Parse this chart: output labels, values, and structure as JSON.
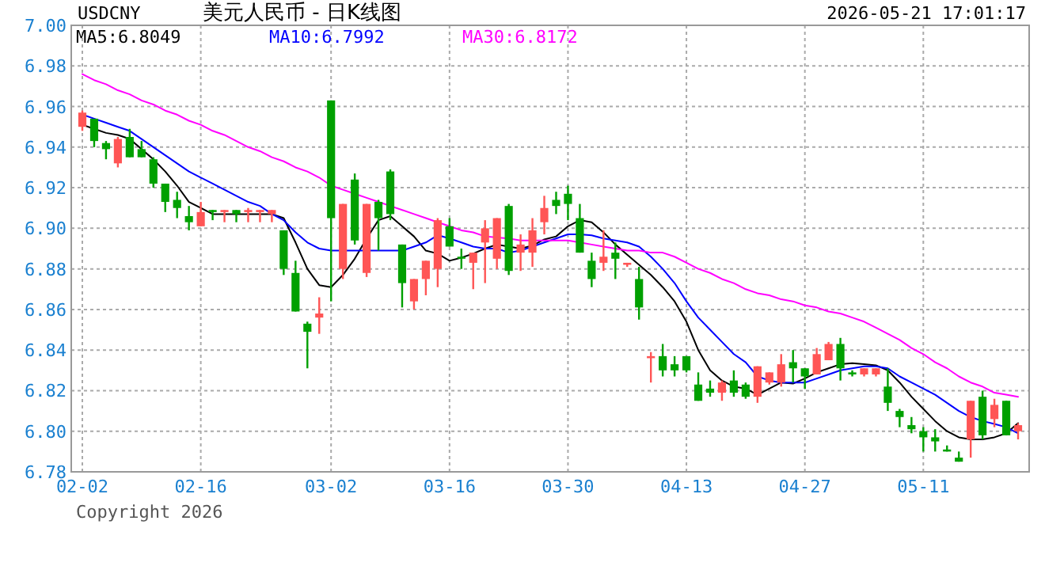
{
  "chart_data": {
    "type": "candlestick",
    "title": "美元人民币 - 日K线图",
    "annotations": [
      "USDCNY",
      "2026-05-21 17:01:17",
      "Copyright 2026"
    ],
    "categories": [
      "02-02",
      null,
      null,
      null,
      null,
      null,
      null,
      null,
      null,
      null,
      "02-16",
      null,
      null,
      null,
      null,
      null,
      null,
      null,
      null,
      null,
      null,
      "03-02",
      null,
      null,
      null,
      null,
      null,
      null,
      null,
      null,
      null,
      "03-16",
      null,
      null,
      null,
      null,
      null,
      null,
      null,
      null,
      null,
      "03-30",
      null,
      null,
      null,
      null,
      null,
      null,
      null,
      null,
      null,
      "04-13",
      null,
      null,
      null,
      null,
      null,
      null,
      null,
      null,
      null,
      "04-27",
      null,
      null,
      null,
      null,
      null,
      null,
      null,
      null,
      null,
      "05-11",
      null,
      null,
      null,
      null,
      null,
      null,
      null,
      null
    ],
    "ohlc": [
      [
        6.95,
        6.958,
        6.948,
        6.957
      ],
      [
        6.954,
        6.954,
        6.94,
        6.943
      ],
      [
        6.942,
        6.943,
        6.934,
        6.939
      ],
      [
        6.932,
        6.945,
        6.93,
        6.944
      ],
      [
        6.945,
        6.949,
        6.935,
        6.935
      ],
      [
        6.939,
        6.943,
        6.935,
        6.935
      ],
      [
        6.934,
        6.935,
        6.92,
        6.922
      ],
      [
        6.922,
        6.922,
        6.908,
        6.913
      ],
      [
        6.914,
        6.918,
        6.905,
        6.91
      ],
      [
        6.906,
        6.911,
        6.899,
        6.903
      ],
      [
        6.901,
        6.913,
        6.901,
        6.908
      ],
      [
        6.909,
        6.909,
        6.904,
        6.908
      ],
      [
        6.908,
        6.909,
        6.903,
        6.909
      ],
      [
        6.909,
        6.909,
        6.903,
        6.907
      ],
      [
        6.908,
        6.91,
        6.903,
        6.909
      ],
      [
        6.908,
        6.909,
        6.903,
        6.909
      ],
      [
        6.907,
        6.909,
        6.903,
        6.909
      ],
      [
        6.899,
        6.899,
        6.877,
        6.88
      ],
      [
        6.878,
        6.884,
        6.859,
        6.859
      ],
      [
        6.853,
        6.854,
        6.831,
        6.849
      ],
      [
        6.856,
        6.866,
        6.848,
        6.858
      ],
      [
        6.963,
        6.963,
        6.864,
        6.905
      ],
      [
        6.88,
        6.912,
        6.875,
        6.912
      ],
      [
        6.924,
        6.927,
        6.892,
        6.894
      ],
      [
        6.878,
        6.912,
        6.876,
        6.912
      ],
      [
        6.913,
        6.914,
        6.889,
        6.905
      ],
      [
        6.928,
        6.929,
        6.904,
        6.907
      ],
      [
        6.892,
        6.892,
        6.861,
        6.873
      ],
      [
        6.864,
        6.875,
        6.86,
        6.875
      ],
      [
        6.875,
        6.884,
        6.867,
        6.884
      ],
      [
        6.88,
        6.905,
        6.871,
        6.904
      ],
      [
        6.901,
        6.905,
        6.891,
        6.891
      ],
      [
        6.886,
        6.89,
        6.88,
        6.885
      ],
      [
        6.883,
        6.888,
        6.87,
        6.888
      ],
      [
        6.893,
        6.904,
        6.873,
        6.9
      ],
      [
        6.885,
        6.905,
        6.88,
        6.905
      ],
      [
        6.911,
        6.912,
        6.877,
        6.879
      ],
      [
        6.888,
        6.897,
        6.879,
        6.892
      ],
      [
        6.888,
        6.905,
        6.881,
        6.899
      ],
      [
        6.903,
        6.916,
        6.897,
        6.91
      ],
      [
        6.914,
        6.918,
        6.907,
        6.911
      ],
      [
        6.917,
        6.921,
        6.904,
        6.912
      ],
      [
        6.905,
        6.912,
        6.888,
        6.888
      ],
      [
        6.884,
        6.888,
        6.871,
        6.875
      ],
      [
        6.883,
        6.899,
        6.879,
        6.886
      ],
      [
        6.888,
        6.893,
        6.875,
        6.885
      ],
      [
        6.882,
        6.883,
        6.881,
        6.883
      ],
      [
        6.875,
        6.881,
        6.855,
        6.861
      ],
      [
        6.836,
        6.839,
        6.824,
        6.837
      ],
      [
        6.837,
        6.843,
        6.827,
        6.83
      ],
      [
        6.833,
        6.837,
        6.827,
        6.83
      ],
      [
        6.837,
        6.837,
        6.829,
        6.83
      ],
      [
        6.823,
        6.829,
        6.815,
        6.815
      ],
      [
        6.821,
        6.825,
        6.817,
        6.819
      ],
      [
        6.819,
        6.825,
        6.815,
        6.824
      ],
      [
        6.825,
        6.83,
        6.817,
        6.819
      ],
      [
        6.823,
        6.824,
        6.816,
        6.817
      ],
      [
        6.817,
        6.832,
        6.814,
        6.832
      ],
      [
        6.824,
        6.829,
        6.823,
        6.829
      ],
      [
        6.824,
        6.838,
        6.822,
        6.833
      ],
      [
        6.834,
        6.84,
        6.824,
        6.831
      ],
      [
        6.831,
        6.831,
        6.821,
        6.827
      ],
      [
        6.828,
        6.841,
        6.828,
        6.838
      ],
      [
        6.835,
        6.844,
        6.835,
        6.843
      ],
      [
        6.843,
        6.846,
        6.825,
        6.831
      ],
      [
        6.829,
        6.83,
        6.827,
        6.828
      ],
      [
        6.828,
        6.831,
        6.827,
        6.831
      ],
      [
        6.828,
        6.831,
        6.827,
        6.831
      ],
      [
        6.822,
        6.831,
        6.81,
        6.814
      ],
      [
        6.81,
        6.811,
        6.802,
        6.807
      ],
      [
        6.803,
        6.807,
        6.799,
        6.801
      ],
      [
        6.8,
        6.802,
        6.79,
        6.797
      ],
      [
        6.797,
        6.801,
        6.79,
        6.795
      ],
      [
        6.791,
        6.793,
        6.79,
        6.79
      ],
      [
        6.787,
        6.79,
        6.785,
        6.785
      ],
      [
        6.796,
        6.815,
        6.787,
        6.815
      ],
      [
        6.817,
        6.82,
        6.796,
        6.798
      ],
      [
        6.806,
        6.816,
        6.802,
        6.813
      ],
      [
        6.815,
        6.815,
        6.798,
        6.798
      ],
      [
        6.8,
        6.804,
        6.796,
        6.803
      ]
    ],
    "colors": [
      "#ff5555",
      "#00a000",
      "#00a000",
      "#ff5555",
      "#00a000",
      "#00a000",
      "#00a000",
      "#00a000",
      "#00a000",
      "#00a000",
      "#ff5555",
      "#00a000",
      "#ff5555",
      "#00a000",
      "#ff5555",
      "#ff5555",
      "#ff5555",
      "#00a000",
      "#00a000",
      "#00a000",
      "#ff5555",
      "#00a000",
      "#ff5555",
      "#00a000",
      "#ff5555",
      "#00a000",
      "#00a000",
      "#00a000",
      "#ff5555",
      "#ff5555",
      "#ff5555",
      "#00a000",
      "#00a000",
      "#ff5555",
      "#ff5555",
      "#ff5555",
      "#00a000",
      "#ff5555",
      "#ff5555",
      "#ff5555",
      "#00a000",
      "#00a000",
      "#00a000",
      "#00a000",
      "#ff5555",
      "#00a000",
      "#ff5555",
      "#00a000",
      "#ff5555",
      "#00a000",
      "#00a000",
      "#00a000",
      "#00a000",
      "#00a000",
      "#ff5555",
      "#00a000",
      "#00a000",
      "#ff5555",
      "#ff5555",
      "#ff5555",
      "#00a000",
      "#00a000",
      "#ff5555",
      "#ff5555",
      "#00a000",
      "#00a000",
      "#ff5555",
      "#ff5555",
      "#00a000",
      "#00a000",
      "#00a000",
      "#00a000",
      "#00a000",
      "#00a000",
      "#00a000",
      "#ff5555",
      "#00a000",
      "#ff5555",
      "#00a000",
      "#ff5555"
    ],
    "series": [
      {
        "type": "line",
        "name": "MA5:6.8049",
        "color": "#000000",
        "values": [
          6.951,
          6.949,
          6.947,
          6.946,
          6.944,
          6.939,
          6.934,
          6.928,
          6.921,
          6.913,
          6.91,
          6.907,
          6.907,
          6.907,
          6.907,
          6.907,
          6.907,
          6.905,
          6.893,
          6.88,
          6.872,
          6.871,
          6.877,
          6.885,
          6.895,
          6.904,
          6.906,
          6.901,
          6.896,
          6.889,
          6.8875,
          6.884,
          6.8855,
          6.8875,
          6.89,
          6.892,
          6.891,
          6.89,
          6.8915,
          6.8945,
          6.896,
          6.901,
          6.904,
          6.903,
          6.898,
          6.892,
          6.887,
          6.882,
          6.877,
          6.871,
          6.864,
          6.854,
          6.84,
          6.83,
          6.825,
          6.822,
          6.821,
          6.818,
          6.821,
          6.824,
          6.8235,
          6.826,
          6.829,
          6.831,
          6.833,
          6.8335,
          6.833,
          6.8325,
          6.83,
          6.824,
          6.817,
          6.811,
          6.805,
          6.8,
          6.797,
          6.796,
          6.796,
          6.797,
          6.799,
          6.804
        ]
      },
      {
        "type": "line",
        "name": "MA10:6.7992",
        "color": "#0000ff",
        "values": [
          6.956,
          6.954,
          6.952,
          6.95,
          6.948,
          6.944,
          6.94,
          6.936,
          6.932,
          6.928,
          6.925,
          6.922,
          6.919,
          6.916,
          6.913,
          6.911,
          6.907,
          6.904,
          6.898,
          6.893,
          6.89,
          6.889,
          6.889,
          6.889,
          6.889,
          6.889,
          6.889,
          6.889,
          6.891,
          6.893,
          6.8966,
          6.895,
          6.893,
          6.891,
          6.89,
          6.89,
          6.888,
          6.889,
          6.891,
          6.893,
          6.895,
          6.897,
          6.897,
          6.8965,
          6.895,
          6.894,
          6.893,
          6.891,
          6.886,
          6.88,
          6.873,
          6.864,
          6.856,
          6.85,
          6.844,
          6.838,
          6.834,
          6.827,
          6.825,
          6.824,
          6.824,
          6.824,
          6.826,
          6.828,
          6.83,
          6.831,
          6.832,
          6.832,
          6.831,
          6.827,
          6.824,
          6.821,
          6.818,
          6.814,
          6.81,
          6.807,
          6.805,
          6.8036,
          6.802,
          6.799
        ]
      },
      {
        "type": "line",
        "name": "MA30:6.8172",
        "color": "#ff00ff",
        "values": [
          6.976,
          6.973,
          6.971,
          6.968,
          6.966,
          6.963,
          6.961,
          6.958,
          6.956,
          6.953,
          6.951,
          6.948,
          6.946,
          6.943,
          6.94,
          6.938,
          6.935,
          6.933,
          6.93,
          6.928,
          6.925,
          6.921,
          6.919,
          6.917,
          6.915,
          6.913,
          6.911,
          6.909,
          6.907,
          6.905,
          6.903,
          6.901,
          6.899,
          6.898,
          6.896,
          6.8955,
          6.895,
          6.894,
          6.894,
          6.894,
          6.894,
          6.894,
          6.893,
          6.892,
          6.891,
          6.89,
          6.889,
          6.889,
          6.888,
          6.888,
          6.886,
          6.883,
          6.88,
          6.878,
          6.875,
          6.873,
          6.87,
          6.868,
          6.867,
          6.865,
          6.864,
          6.862,
          6.861,
          6.859,
          6.858,
          6.856,
          6.854,
          6.851,
          6.848,
          6.845,
          6.841,
          6.838,
          6.834,
          6.831,
          6.827,
          6.824,
          6.822,
          6.819,
          6.818,
          6.817
        ]
      }
    ],
    "ylim": [
      6.78,
      7.0
    ],
    "yticks": [
      {
        "value": 7.0,
        "label": "7.00"
      },
      {
        "value": 6.98,
        "label": "6.98"
      },
      {
        "value": 6.96,
        "label": "6.96"
      },
      {
        "value": 6.94,
        "label": "6.94"
      },
      {
        "value": 6.92,
        "label": "6.92"
      },
      {
        "value": 6.9,
        "label": "6.90"
      },
      {
        "value": 6.88,
        "label": "6.88"
      },
      {
        "value": 6.86,
        "label": "6.86"
      },
      {
        "value": 6.84,
        "label": "6.84"
      },
      {
        "value": 6.82,
        "label": "6.82"
      },
      {
        "value": 6.8,
        "label": "6.80"
      },
      {
        "value": 6.78,
        "label": "6.78"
      }
    ],
    "grid": true,
    "legend": "top left"
  }
}
